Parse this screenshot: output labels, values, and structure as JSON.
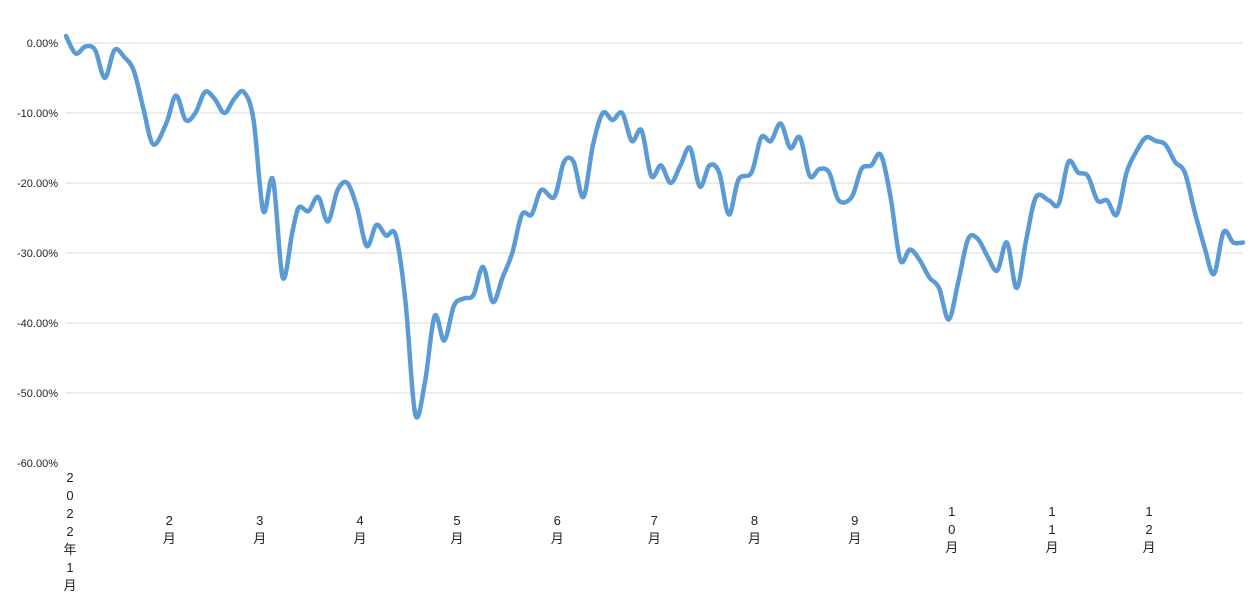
{
  "chart_data": {
    "type": "line",
    "title": "",
    "xlabel": "",
    "ylabel": "",
    "ylim": [
      -60,
      0
    ],
    "y_ticks": [
      {
        "value": 0,
        "label": "0.00%"
      },
      {
        "value": -10,
        "label": "-10.00%"
      },
      {
        "value": -20,
        "label": "-20.00%"
      },
      {
        "value": -30,
        "label": "-30.00%"
      },
      {
        "value": -40,
        "label": "-40.00%"
      },
      {
        "value": -50,
        "label": "-50.00%"
      },
      {
        "value": -60,
        "label": "-60.00%"
      }
    ],
    "x_ticks": [
      {
        "date": "2022-01-01",
        "label": "2022年1月"
      },
      {
        "date": "2022-02-01",
        "label": "2月"
      },
      {
        "date": "2022-03-01",
        "label": "3月"
      },
      {
        "date": "2022-04-01",
        "label": "4月"
      },
      {
        "date": "2022-05-01",
        "label": "5月"
      },
      {
        "date": "2022-06-01",
        "label": "6月"
      },
      {
        "date": "2022-07-01",
        "label": "7月"
      },
      {
        "date": "2022-08-01",
        "label": "8月"
      },
      {
        "date": "2022-09-01",
        "label": "9月"
      },
      {
        "date": "2022-10-01",
        "label": "10月"
      },
      {
        "date": "2022-11-01",
        "label": "11月"
      },
      {
        "date": "2022-12-01",
        "label": "12月"
      }
    ],
    "grid": true,
    "legend": "none",
    "series": [
      {
        "color": "#5B9BD5",
        "x": [
          "2022-01-01",
          "2022-01-04",
          "2022-01-07",
          "2022-01-10",
          "2022-01-13",
          "2022-01-16",
          "2022-01-19",
          "2022-01-22",
          "2022-01-25",
          "2022-01-28",
          "2022-02-01",
          "2022-02-04",
          "2022-02-07",
          "2022-02-10",
          "2022-02-13",
          "2022-02-16",
          "2022-02-19",
          "2022-02-22",
          "2022-02-25",
          "2022-02-28",
          "2022-03-03",
          "2022-03-06",
          "2022-03-09",
          "2022-03-12",
          "2022-03-14",
          "2022-03-17",
          "2022-03-20",
          "2022-03-23",
          "2022-03-26",
          "2022-03-29",
          "2022-04-01",
          "2022-04-04",
          "2022-04-07",
          "2022-04-10",
          "2022-04-13",
          "2022-04-16",
          "2022-04-19",
          "2022-04-22",
          "2022-04-25",
          "2022-04-28",
          "2022-05-01",
          "2022-05-04",
          "2022-05-07",
          "2022-05-10",
          "2022-05-13",
          "2022-05-16",
          "2022-05-19",
          "2022-05-22",
          "2022-05-25",
          "2022-05-28",
          "2022-06-01",
          "2022-06-04",
          "2022-06-07",
          "2022-06-10",
          "2022-06-13",
          "2022-06-16",
          "2022-06-19",
          "2022-06-22",
          "2022-06-25",
          "2022-06-28",
          "2022-07-01",
          "2022-07-04",
          "2022-07-07",
          "2022-07-10",
          "2022-07-13",
          "2022-07-16",
          "2022-07-19",
          "2022-07-22",
          "2022-07-25",
          "2022-07-28",
          "2022-08-01",
          "2022-08-04",
          "2022-08-07",
          "2022-08-10",
          "2022-08-13",
          "2022-08-16",
          "2022-08-19",
          "2022-08-22",
          "2022-08-25",
          "2022-08-28",
          "2022-09-01",
          "2022-09-04",
          "2022-09-07",
          "2022-09-10",
          "2022-09-13",
          "2022-09-16",
          "2022-09-19",
          "2022-09-22",
          "2022-09-25",
          "2022-09-28",
          "2022-10-01",
          "2022-10-04",
          "2022-10-07",
          "2022-10-10",
          "2022-10-13",
          "2022-10-16",
          "2022-10-19",
          "2022-10-22",
          "2022-10-25",
          "2022-10-28",
          "2022-11-01",
          "2022-11-04",
          "2022-11-07",
          "2022-11-10",
          "2022-11-13",
          "2022-11-16",
          "2022-11-19",
          "2022-11-22",
          "2022-11-25",
          "2022-11-28",
          "2022-12-01",
          "2022-12-04",
          "2022-12-07",
          "2022-12-10",
          "2022-12-13",
          "2022-12-16",
          "2022-12-19",
          "2022-12-22",
          "2022-12-25",
          "2022-12-28",
          "2022-12-31"
        ],
        "y": [
          1.0,
          -1.5,
          -0.5,
          -1.0,
          -5.0,
          -1.0,
          -2.0,
          -4.0,
          -9.5,
          -14.5,
          -11.5,
          -7.5,
          -11.0,
          -10.0,
          -7.0,
          -8.0,
          -10.0,
          -8.0,
          -7.0,
          -11.0,
          -24.0,
          -19.5,
          -33.5,
          -27.0,
          -23.5,
          -24.0,
          -22.0,
          -25.5,
          -21.0,
          -20.0,
          -23.5,
          -29.0,
          -26.0,
          -27.5,
          -27.5,
          -37.0,
          -53.0,
          -48.5,
          -39.0,
          -42.5,
          -37.5,
          -36.5,
          -36.0,
          -32.0,
          -37.0,
          -33.5,
          -30.0,
          -24.5,
          -24.5,
          -21.0,
          -22.0,
          -17.0,
          -17.0,
          -22.0,
          -14.5,
          -10.0,
          -11.0,
          -10.0,
          -14.0,
          -12.5,
          -19.0,
          -17.5,
          -20.0,
          -17.5,
          -15.0,
          -20.5,
          -17.5,
          -18.5,
          -24.5,
          -19.5,
          -18.5,
          -13.5,
          -14.0,
          -11.5,
          -15.0,
          -13.5,
          -19.0,
          -18.0,
          -18.5,
          -22.5,
          -22.0,
          -18.0,
          -17.5,
          -16.0,
          -22.0,
          -31.0,
          -29.5,
          -31.0,
          -33.5,
          -35.0,
          -39.5,
          -34.0,
          -28.0,
          -28.0,
          -30.5,
          -32.5,
          -28.5,
          -35.0,
          -28.0,
          -22.0,
          -22.5,
          -23.0,
          -17.0,
          -18.5,
          -19.0,
          -22.5,
          -22.5,
          -24.5,
          -18.5,
          -15.5,
          -13.5,
          -14.0,
          -14.5,
          -17.0,
          -18.5,
          -24.0,
          -29.0,
          -33.0,
          -27.0,
          -28.5,
          -28.5
        ]
      }
    ]
  }
}
